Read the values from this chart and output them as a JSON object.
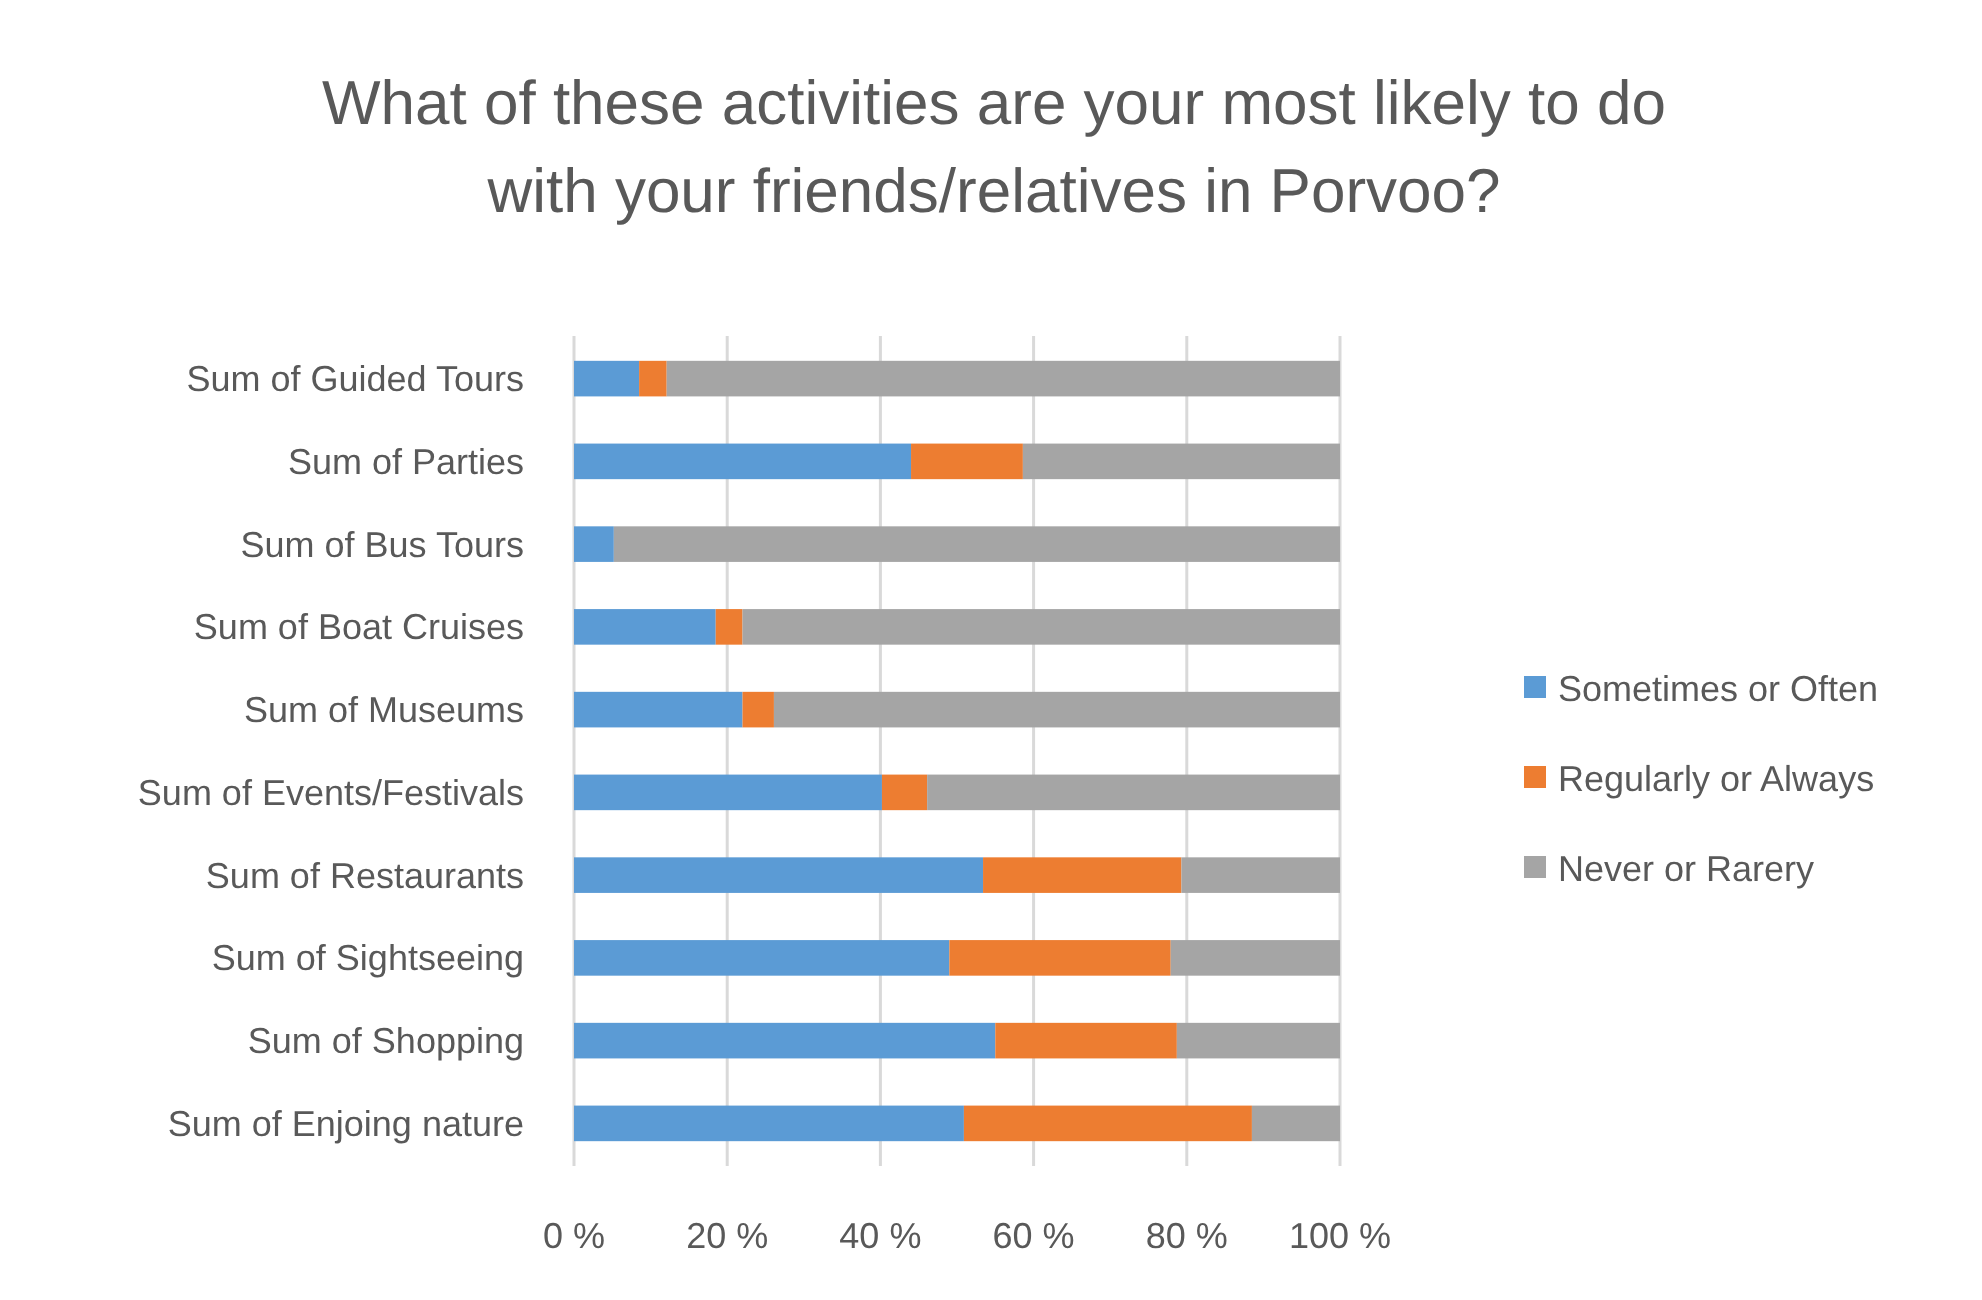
{
  "chart_data": {
    "type": "bar",
    "orientation": "horizontal",
    "stacked": true,
    "title": "What of these activities are your most likely to do with your friends/relatives in Porvoo?",
    "categories": [
      "Sum of Guided Tours",
      "Sum of Parties",
      "Sum of Bus Tours",
      "Sum of Boat Cruises",
      "Sum of Museums",
      "Sum of Events/Festivals",
      "Sum of Restaurants",
      "Sum of Sightseeing",
      "Sum of Shopping",
      "Sum of Enjoing nature"
    ],
    "series": [
      {
        "name": "Sometimes or Often",
        "color": "#5b9bd5",
        "values": [
          8.5,
          44.0,
          5.2,
          18.5,
          22.0,
          40.2,
          53.4,
          49.0,
          55.0,
          50.9
        ]
      },
      {
        "name": "Regularly or Always",
        "color": "#ed7d31",
        "values": [
          3.6,
          14.6,
          0,
          3.5,
          4.1,
          5.9,
          25.9,
          28.9,
          23.7,
          37.6
        ]
      },
      {
        "name": "Never or Rarery",
        "color": "#a5a5a5",
        "values": [
          87.9,
          41.4,
          94.8,
          78.0,
          73.9,
          53.9,
          20.7,
          22.1,
          21.3,
          11.5
        ]
      }
    ],
    "xlim": [
      0,
      100
    ],
    "xticks": [
      {
        "value": 0,
        "label": "0 %"
      },
      {
        "value": 20,
        "label": "20 %"
      },
      {
        "value": 40,
        "label": "40 %"
      },
      {
        "value": 60,
        "label": "60 %"
      },
      {
        "value": 80,
        "label": "80 %"
      },
      {
        "value": 100,
        "label": "100 %"
      }
    ],
    "grid": "x",
    "legend": "right"
  }
}
